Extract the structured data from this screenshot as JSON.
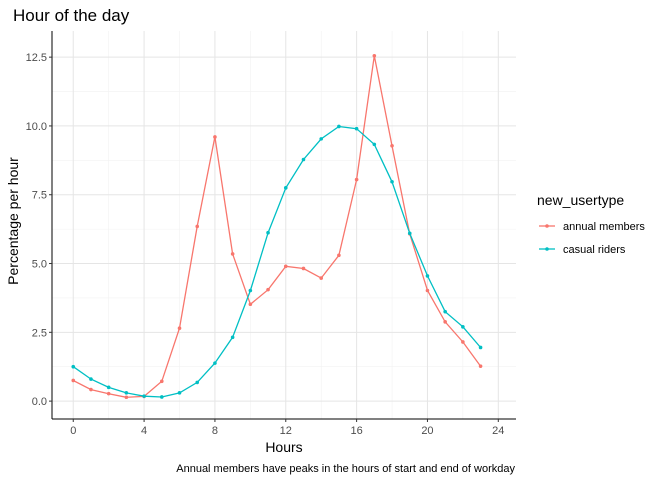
{
  "chart_data": {
    "type": "line",
    "title": "Hour of the day",
    "xlabel": "Hours",
    "ylabel": "Percentage per hour",
    "caption": "Annual members have peaks in the hours of start and end of workday",
    "xlim": [
      -1.2,
      25.0
    ],
    "ylim": [
      -0.65,
      13.45
    ],
    "x_ticks": [
      0,
      4,
      8,
      12,
      16,
      20,
      24
    ],
    "x_tick_labels": [
      "0",
      "4",
      "8",
      "12",
      "16",
      "20",
      "24"
    ],
    "y_ticks": [
      0,
      2.5,
      5,
      7.5,
      10,
      12.5
    ],
    "y_tick_labels": [
      "0.0",
      "2.5",
      "5.0",
      "7.5",
      "10.0",
      "12.5"
    ],
    "grid": true,
    "legend": {
      "title": "new_usertype",
      "position": "right"
    },
    "x": [
      0,
      1,
      2,
      3,
      4,
      5,
      6,
      7,
      8,
      9,
      10,
      11,
      12,
      13,
      14,
      15,
      16,
      17,
      18,
      19,
      20,
      21,
      22,
      23
    ],
    "series": [
      {
        "name": "annual members",
        "color": "#F8766D",
        "values": [
          0.75,
          0.42,
          0.27,
          0.14,
          0.17,
          0.72,
          2.65,
          6.35,
          9.6,
          5.35,
          3.52,
          4.05,
          4.9,
          4.82,
          4.47,
          5.3,
          8.05,
          12.55,
          9.28,
          6.08,
          4.02,
          2.88,
          2.15,
          1.27
        ]
      },
      {
        "name": "casual riders",
        "color": "#00BFC4",
        "values": [
          1.25,
          0.8,
          0.5,
          0.3,
          0.18,
          0.15,
          0.3,
          0.68,
          1.38,
          2.32,
          4.02,
          6.12,
          7.75,
          8.78,
          9.53,
          9.98,
          9.9,
          9.33,
          7.97,
          6.1,
          4.55,
          3.25,
          2.7,
          1.95
        ]
      }
    ]
  }
}
